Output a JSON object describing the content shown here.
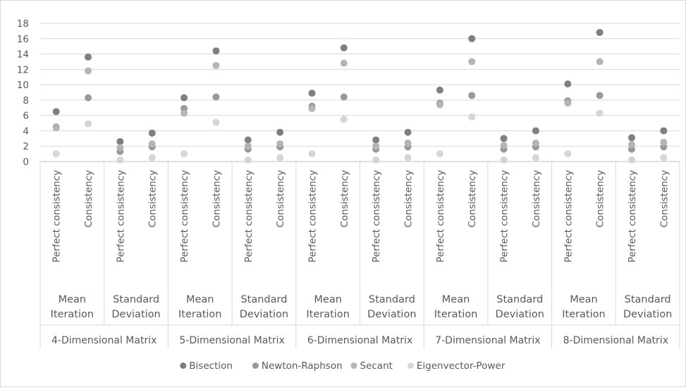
{
  "chart_data": {
    "type": "scatter",
    "title": "",
    "xlabel": "",
    "ylabel": "",
    "ylim": [
      0,
      18
    ],
    "yticks": [
      0,
      2,
      4,
      6,
      8,
      10,
      12,
      14,
      16,
      18
    ],
    "grid": true,
    "legend_position": "bottom",
    "groups": [
      {
        "label": "4-Dimensional Matrix",
        "subgroups": [
          {
            "label": "Mean Iteration",
            "categories": [
              "Perfect consistency",
              "Consistency"
            ]
          },
          {
            "label": "Standard Deviation",
            "categories": [
              "Perfect consistency",
              "Consistency"
            ]
          }
        ]
      },
      {
        "label": "5-Dimensional Matrix",
        "subgroups": [
          {
            "label": "Mean Iteration",
            "categories": [
              "Perfect consistency",
              "Consistency"
            ]
          },
          {
            "label": "Standard Deviation",
            "categories": [
              "Perfect consistency",
              "Consistency"
            ]
          }
        ]
      },
      {
        "label": "6-Dimensional Matrix",
        "subgroups": [
          {
            "label": "Mean Iteration",
            "categories": [
              "Perfect consistency",
              "Consistency"
            ]
          },
          {
            "label": "Standard Deviation",
            "categories": [
              "Perfect consistency",
              "Consistency"
            ]
          }
        ]
      },
      {
        "label": "7-Dimensional Matrix",
        "subgroups": [
          {
            "label": "Mean Iteration",
            "categories": [
              "Perfect consistency",
              "Consistency"
            ]
          },
          {
            "label": "Standard Deviation",
            "categories": [
              "Perfect consistency",
              "Consistency"
            ]
          }
        ]
      },
      {
        "label": "8-Dimensional Matrix",
        "subgroups": [
          {
            "label": "Mean Iteration",
            "categories": [
              "Perfect consistency",
              "Consistency"
            ]
          },
          {
            "label": "Standard Deviation",
            "categories": [
              "Perfect consistency",
              "Consistency"
            ]
          }
        ]
      }
    ],
    "series": [
      {
        "name": "Bisection",
        "color": "#7f7f7f",
        "values": [
          6.5,
          13.6,
          2.6,
          3.7,
          8.3,
          14.4,
          2.8,
          3.8,
          8.9,
          14.8,
          2.8,
          3.8,
          9.3,
          16.0,
          3.0,
          4.0,
          10.1,
          16.8,
          3.1,
          4.0
        ]
      },
      {
        "name": "Newton-Raphson",
        "color": "#999999",
        "values": [
          4.5,
          8.3,
          1.3,
          1.9,
          6.9,
          8.4,
          1.6,
          1.9,
          7.2,
          8.4,
          1.6,
          1.9,
          7.6,
          8.6,
          1.6,
          1.9,
          7.9,
          8.6,
          1.6,
          1.9
        ]
      },
      {
        "name": "Secant",
        "color": "#b5b5b5",
        "values": [
          4.4,
          11.8,
          1.8,
          2.3,
          6.3,
          12.5,
          2.0,
          2.3,
          6.9,
          12.8,
          2.0,
          2.4,
          7.4,
          13.0,
          2.1,
          2.4,
          7.6,
          13.0,
          2.2,
          2.5
        ]
      },
      {
        "name": "Eigenvector-Power",
        "color": "#d6d6d6",
        "values": [
          1.0,
          4.9,
          0.2,
          0.5,
          1.0,
          5.1,
          0.2,
          0.5,
          1.0,
          5.5,
          0.2,
          0.5,
          1.0,
          5.8,
          0.2,
          0.5,
          1.0,
          6.3,
          0.2,
          0.5
        ]
      }
    ]
  }
}
